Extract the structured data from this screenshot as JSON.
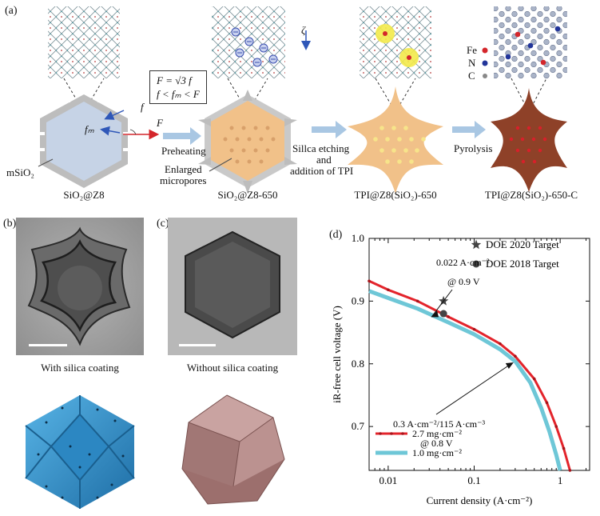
{
  "panel_a": {
    "letter": "(a)",
    "stages": [
      {
        "id": "s1",
        "title": "SiO₂@Z8"
      },
      {
        "id": "s2",
        "title": "SiO₂@Z8-650"
      },
      {
        "id": "s3",
        "title": "TPI@Z8(SiO₂)-650"
      },
      {
        "id": "s4",
        "title": "TPI@Z8(SiO₂)-650-C"
      }
    ],
    "formula_line1": "F = √3 f",
    "formula_line2": "f < fₘ < F",
    "force_f": "f",
    "force_fm": "fₘ",
    "force_F": "F",
    "msio2_label": "mSiO₂",
    "step1": "Preheating",
    "step1_note_line1": "Enlarged",
    "step1_note_line2": "micropores",
    "step2_line1": "Sillca etching",
    "step2_line2": "and",
    "step2_line3": "addition of TPI",
    "step3": "Pyrolysis",
    "zeta": "ζ",
    "legend": {
      "fe": "Fe",
      "n": "N",
      "c": "C"
    },
    "colors": {
      "arrow": "#a9c7e3",
      "hex_core": "#c6d3e6",
      "orange": "#f1c189",
      "brown": "#8e4128",
      "shell": "#bdbdbd"
    }
  },
  "panel_b": {
    "letter": "(b)",
    "caption": "With silica coating"
  },
  "panel_c": {
    "letter": "(c)",
    "caption": "Without silica coating"
  },
  "panel_d": {
    "letter": "(d)"
  },
  "chart_data": {
    "type": "line",
    "title": "",
    "xlabel": "Current density (A·cm⁻²)",
    "ylabel": "iR-free cell voltage (V)",
    "xscale": "log",
    "xlim": [
      0.006,
      2.2
    ],
    "ylim": [
      0.63,
      1.0
    ],
    "xticks": [
      0.01,
      0.1,
      1
    ],
    "xtick_labels": [
      "0.01",
      "0.1",
      "1"
    ],
    "yticks": [
      0.7,
      0.8,
      0.9,
      1.0
    ],
    "ytick_labels": [
      "0.7",
      "0.8",
      "0.9",
      "1.0"
    ],
    "series": [
      {
        "name": "2.7 mg·cm⁻²",
        "color": "#e3242b",
        "x": [
          0.006,
          0.01,
          0.022,
          0.05,
          0.1,
          0.2,
          0.3,
          0.5,
          0.7,
          0.9,
          1.1,
          1.3
        ],
        "y": [
          0.932,
          0.918,
          0.9,
          0.875,
          0.855,
          0.832,
          0.812,
          0.776,
          0.738,
          0.7,
          0.665,
          0.63
        ]
      },
      {
        "name": "1.0 mg·cm⁻²",
        "color": "#6ec7d7",
        "x": [
          0.006,
          0.01,
          0.022,
          0.05,
          0.1,
          0.2,
          0.3,
          0.45,
          0.6,
          0.75,
          0.9,
          1.0
        ],
        "y": [
          0.916,
          0.905,
          0.888,
          0.866,
          0.847,
          0.823,
          0.804,
          0.77,
          0.73,
          0.692,
          0.655,
          0.63
        ]
      }
    ],
    "targets": [
      {
        "name": "DOE 2020 Target",
        "marker": "star",
        "x": 0.044,
        "y": 0.9
      },
      {
        "name": "DOE 2018 Target",
        "marker": "circle",
        "x": 0.044,
        "y": 0.88
      }
    ],
    "annotations": [
      {
        "line1": "0.022 A·cm⁻²",
        "line2": "@ 0.9 V"
      },
      {
        "line1": "0.3 A·cm⁻²/115 A·cm⁻³",
        "line2": "@ 0.8 V"
      }
    ]
  }
}
